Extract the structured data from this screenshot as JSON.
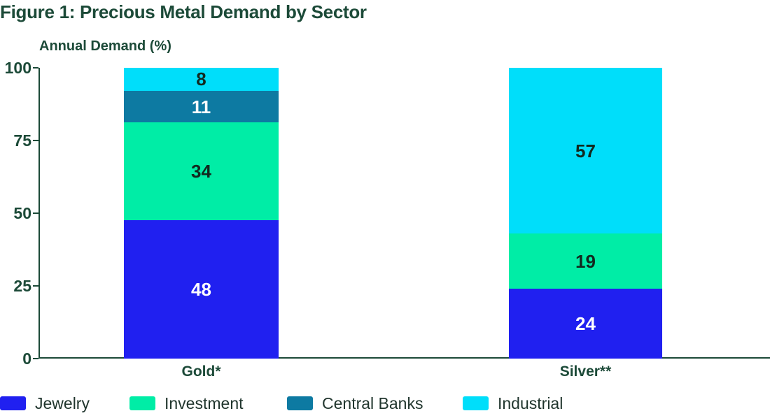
{
  "figure": {
    "title": "Figure 1: Precious Metal Demand by Sector",
    "y_axis_title": "Annual Demand (%)"
  },
  "colors": {
    "title_text": "#1c4a38",
    "axis": "#1c4a38",
    "tick_text": "#1c4a38",
    "legend_text": "#20352d",
    "value_text_dark": "#12291f",
    "value_text_light": "#ffffff"
  },
  "chart_data": {
    "type": "bar",
    "stacked": true,
    "stacked_to_100_percent": true,
    "title": "Figure 1: Precious Metal Demand by Sector",
    "ylabel": "Annual Demand (%)",
    "xlabel": "",
    "categories": [
      "Gold*",
      "Silver**"
    ],
    "series": [
      {
        "name": "Jewelry",
        "color": "#2020f0",
        "value_text_color": "#ffffff",
        "values": [
          48,
          24
        ]
      },
      {
        "name": "Investment",
        "color": "#00eda6",
        "value_text_color": "#12291f",
        "values": [
          34,
          19
        ]
      },
      {
        "name": "Central Banks",
        "color": "#0d7aa2",
        "value_text_color": "#ffffff",
        "values": [
          11,
          0
        ]
      },
      {
        "name": "Industrial",
        "color": "#00defa",
        "value_text_color": "#12291f",
        "values": [
          8,
          57
        ]
      }
    ],
    "yticks": [
      0,
      25,
      50,
      75,
      100
    ],
    "ylim": [
      0,
      100
    ],
    "grid": false,
    "legend_position": "bottom",
    "legend_entries": [
      "Jewelry",
      "Investment",
      "Central Banks",
      "Industrial"
    ]
  }
}
